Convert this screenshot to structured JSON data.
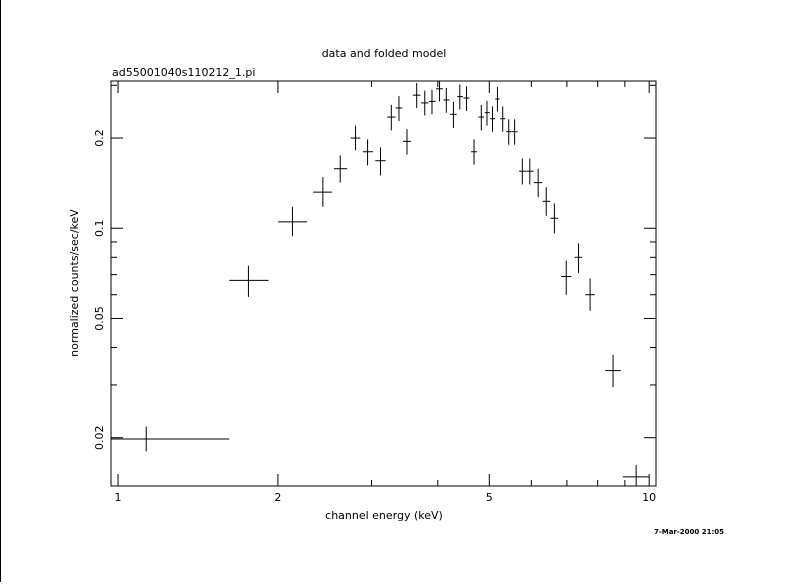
{
  "chart_data": {
    "type": "scatter",
    "title": "data and folded model",
    "subtitle": "ad55001040s110212_1.pi",
    "xlabel": "channel energy (keV)",
    "ylabel": "normalized counts/sec/keV",
    "x_scale": "log",
    "y_scale": "log",
    "xlim": [
      0.97,
      10.3
    ],
    "ylim": [
      0.0138,
      0.31
    ],
    "x_ticks": [
      {
        "value": 1,
        "label": "1"
      },
      {
        "value": 2,
        "label": "2"
      },
      {
        "value": 5,
        "label": "5"
      },
      {
        "value": 10,
        "label": "10"
      }
    ],
    "y_ticks": [
      {
        "value": 0.02,
        "label": "0.02"
      },
      {
        "value": 0.05,
        "label": "0.05"
      },
      {
        "value": 0.1,
        "label": "0.1"
      },
      {
        "value": 0.2,
        "label": "0.2"
      }
    ],
    "timestamp": "7-Mar-2000 21:05",
    "points": [
      {
        "x": 1.13,
        "xlo": 0.97,
        "xhi": 1.62,
        "y": 0.0198,
        "ylo": 0.018,
        "yhi": 0.0218
      },
      {
        "x": 1.76,
        "xlo": 1.62,
        "xhi": 1.92,
        "y": 0.067,
        "ylo": 0.059,
        "yhi": 0.075
      },
      {
        "x": 2.13,
        "xlo": 2.0,
        "xhi": 2.27,
        "y": 0.105,
        "ylo": 0.094,
        "yhi": 0.118
      },
      {
        "x": 2.43,
        "xlo": 2.33,
        "xhi": 2.53,
        "y": 0.132,
        "ylo": 0.118,
        "yhi": 0.148
      },
      {
        "x": 2.62,
        "xlo": 2.55,
        "xhi": 2.7,
        "y": 0.158,
        "ylo": 0.142,
        "yhi": 0.175
      },
      {
        "x": 2.8,
        "xlo": 2.74,
        "xhi": 2.86,
        "y": 0.2,
        "ylo": 0.182,
        "yhi": 0.22
      },
      {
        "x": 2.95,
        "xlo": 2.89,
        "xhi": 3.02,
        "y": 0.18,
        "ylo": 0.162,
        "yhi": 0.198
      },
      {
        "x": 3.12,
        "xlo": 3.05,
        "xhi": 3.19,
        "y": 0.168,
        "ylo": 0.15,
        "yhi": 0.186
      },
      {
        "x": 3.27,
        "xlo": 3.21,
        "xhi": 3.33,
        "y": 0.235,
        "ylo": 0.212,
        "yhi": 0.258
      },
      {
        "x": 3.38,
        "xlo": 3.33,
        "xhi": 3.43,
        "y": 0.252,
        "ylo": 0.228,
        "yhi": 0.276
      },
      {
        "x": 3.5,
        "xlo": 3.44,
        "xhi": 3.56,
        "y": 0.195,
        "ylo": 0.176,
        "yhi": 0.214
      },
      {
        "x": 3.65,
        "xlo": 3.59,
        "xhi": 3.71,
        "y": 0.278,
        "ylo": 0.252,
        "yhi": 0.305
      },
      {
        "x": 3.78,
        "xlo": 3.72,
        "xhi": 3.84,
        "y": 0.262,
        "ylo": 0.238,
        "yhi": 0.288
      },
      {
        "x": 3.9,
        "xlo": 3.85,
        "xhi": 3.96,
        "y": 0.265,
        "ylo": 0.24,
        "yhi": 0.29
      },
      {
        "x": 4.03,
        "xlo": 3.97,
        "xhi": 4.09,
        "y": 0.292,
        "ylo": 0.265,
        "yhi": 0.32
      },
      {
        "x": 4.15,
        "xlo": 4.1,
        "xhi": 4.21,
        "y": 0.268,
        "ylo": 0.243,
        "yhi": 0.294
      },
      {
        "x": 4.28,
        "xlo": 4.22,
        "xhi": 4.34,
        "y": 0.24,
        "ylo": 0.216,
        "yhi": 0.264
      },
      {
        "x": 4.4,
        "xlo": 4.35,
        "xhi": 4.46,
        "y": 0.275,
        "ylo": 0.249,
        "yhi": 0.302
      },
      {
        "x": 4.53,
        "xlo": 4.47,
        "xhi": 4.59,
        "y": 0.272,
        "ylo": 0.246,
        "yhi": 0.298
      },
      {
        "x": 4.68,
        "xlo": 4.62,
        "xhi": 4.74,
        "y": 0.18,
        "ylo": 0.163,
        "yhi": 0.198
      },
      {
        "x": 4.83,
        "xlo": 4.77,
        "xhi": 4.89,
        "y": 0.235,
        "ylo": 0.212,
        "yhi": 0.258
      },
      {
        "x": 4.95,
        "xlo": 4.9,
        "xhi": 5.01,
        "y": 0.243,
        "ylo": 0.22,
        "yhi": 0.266
      },
      {
        "x": 5.07,
        "xlo": 5.02,
        "xhi": 5.13,
        "y": 0.232,
        "ylo": 0.21,
        "yhi": 0.255
      },
      {
        "x": 5.18,
        "xlo": 5.13,
        "xhi": 5.23,
        "y": 0.27,
        "ylo": 0.245,
        "yhi": 0.296
      },
      {
        "x": 5.3,
        "xlo": 5.24,
        "xhi": 5.36,
        "y": 0.232,
        "ylo": 0.21,
        "yhi": 0.255
      },
      {
        "x": 5.44,
        "xlo": 5.38,
        "xhi": 5.51,
        "y": 0.21,
        "ylo": 0.19,
        "yhi": 0.231
      },
      {
        "x": 5.58,
        "xlo": 5.52,
        "xhi": 5.65,
        "y": 0.21,
        "ylo": 0.19,
        "yhi": 0.231
      },
      {
        "x": 5.77,
        "xlo": 5.69,
        "xhi": 5.86,
        "y": 0.155,
        "ylo": 0.14,
        "yhi": 0.171
      },
      {
        "x": 5.96,
        "xlo": 5.87,
        "xhi": 6.06,
        "y": 0.155,
        "ylo": 0.14,
        "yhi": 0.171
      },
      {
        "x": 6.18,
        "xlo": 6.07,
        "xhi": 6.29,
        "y": 0.142,
        "ylo": 0.127,
        "yhi": 0.158
      },
      {
        "x": 6.4,
        "xlo": 6.3,
        "xhi": 6.51,
        "y": 0.123,
        "ylo": 0.11,
        "yhi": 0.137
      },
      {
        "x": 6.63,
        "xlo": 6.52,
        "xhi": 6.74,
        "y": 0.108,
        "ylo": 0.096,
        "yhi": 0.121
      },
      {
        "x": 6.98,
        "xlo": 6.83,
        "xhi": 7.14,
        "y": 0.069,
        "ylo": 0.06,
        "yhi": 0.078
      },
      {
        "x": 7.36,
        "xlo": 7.24,
        "xhi": 7.48,
        "y": 0.08,
        "ylo": 0.071,
        "yhi": 0.089
      },
      {
        "x": 7.74,
        "xlo": 7.58,
        "xhi": 7.9,
        "y": 0.06,
        "ylo": 0.053,
        "yhi": 0.068
      },
      {
        "x": 8.55,
        "xlo": 8.27,
        "xhi": 8.84,
        "y": 0.0335,
        "ylo": 0.0295,
        "yhi": 0.0378
      },
      {
        "x": 9.45,
        "xlo": 8.92,
        "xhi": 10.0,
        "y": 0.0148,
        "ylo": 0.0138,
        "yhi": 0.0162
      }
    ]
  }
}
